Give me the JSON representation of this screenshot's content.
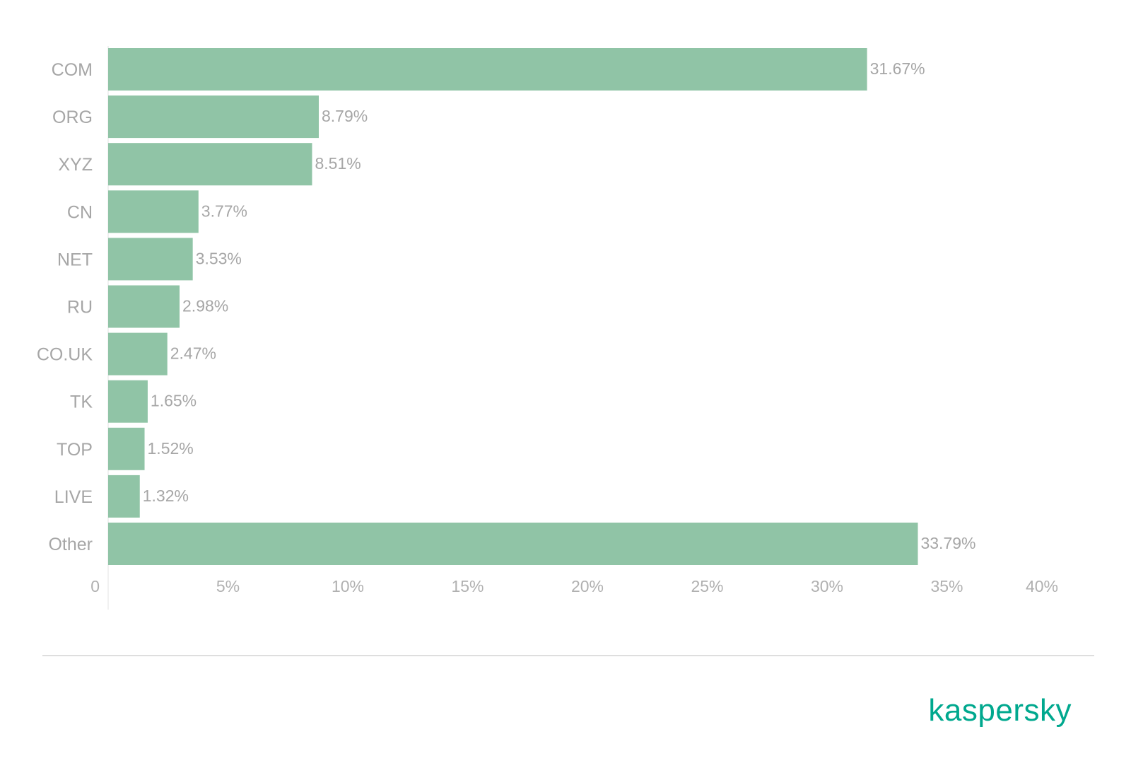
{
  "chart_data": {
    "type": "bar",
    "orientation": "horizontal",
    "categories": [
      "COM",
      "ORG",
      "XYZ",
      "CN",
      "NET",
      "RU",
      "CO.UK",
      "TK",
      "TOP",
      "LIVE",
      "Other"
    ],
    "values": [
      31.67,
      8.79,
      8.51,
      3.77,
      3.53,
      2.98,
      2.47,
      1.65,
      1.52,
      1.32,
      33.79
    ],
    "value_labels": [
      "31.67%",
      "8.79%",
      "8.51%",
      "3.77%",
      "3.53%",
      "2.98%",
      "2.47%",
      "1.65%",
      "1.52%",
      "1.32%",
      "33.79%"
    ],
    "xlim": [
      0,
      40
    ],
    "xticks": [
      0,
      5,
      10,
      15,
      20,
      25,
      30,
      35,
      40
    ],
    "xtick_labels": [
      "0",
      "5%",
      "10%",
      "15%",
      "20%",
      "25%",
      "30%",
      "35%",
      "40%"
    ],
    "bar_color": "#90c4a6",
    "grid": false
  },
  "brand": {
    "name": "kaspersky",
    "color": "#00a88e"
  }
}
